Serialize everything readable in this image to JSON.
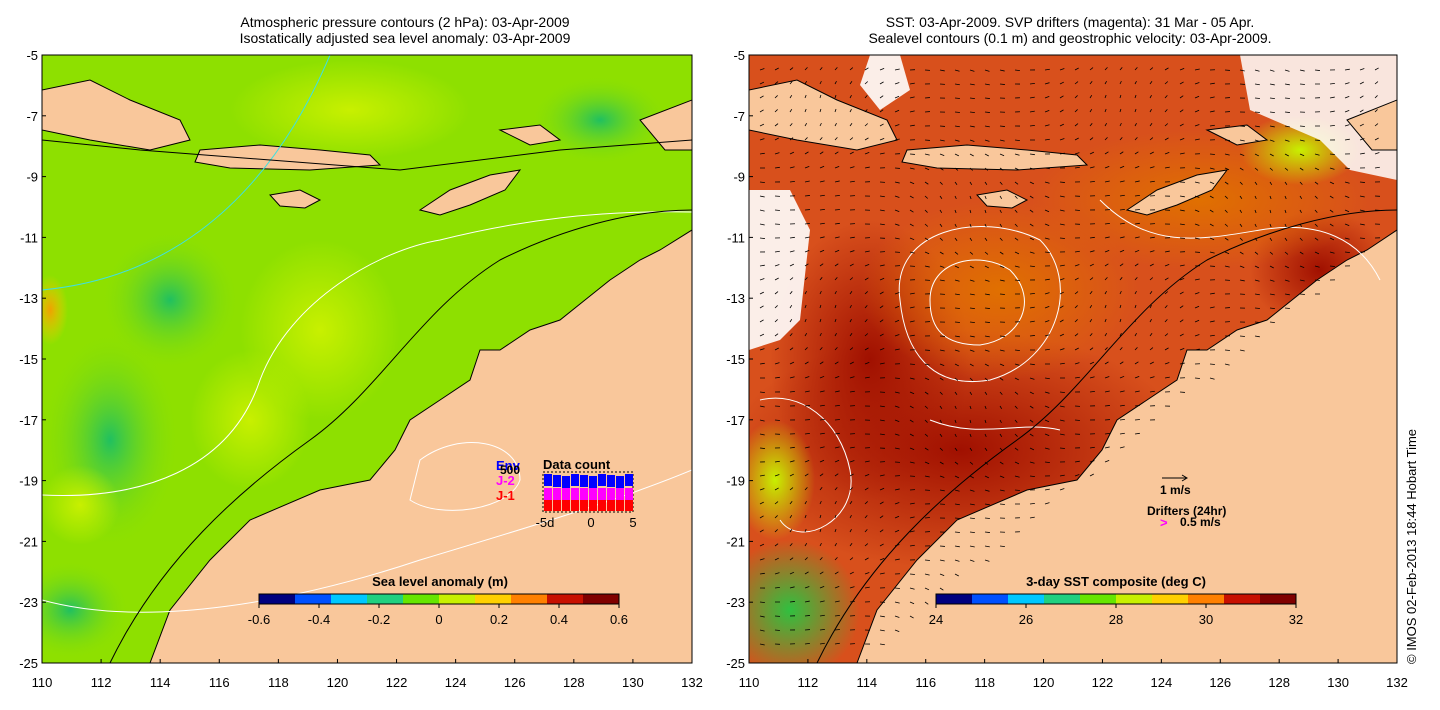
{
  "left_map": {
    "title_line1": "Atmospheric pressure contours (2 hPa): 03-Apr-2009",
    "title_line2": "Isostatically adjusted sea level anomaly: 03-Apr-2009",
    "y_ticks": [
      "-5",
      "-7",
      "-9",
      "-11",
      "-13",
      "-15",
      "-17",
      "-19",
      "-21",
      "-23",
      "-25"
    ],
    "x_ticks": [
      "110",
      "112",
      "114",
      "116",
      "118",
      "120",
      "122",
      "124",
      "126",
      "128",
      "130",
      "132"
    ],
    "colorbar": {
      "title": "Sea level anomaly (m)",
      "ticks": [
        "-0.6",
        "-0.4",
        "-0.2",
        "0",
        "0.2",
        "0.4",
        "0.6"
      ],
      "colors": [
        "#00007f",
        "#0050ff",
        "#00c8ff",
        "#20d080",
        "#66e600",
        "#c8f000",
        "#ffd000",
        "#ff8000",
        "#c81000",
        "#800000"
      ]
    },
    "data_count": {
      "title": "Data count",
      "legend_env": "Env",
      "legend_j2": "J-2",
      "legend_j1": "J-1",
      "legend_max": "500",
      "x_ticks": [
        "-5d",
        "0",
        "5"
      ],
      "bar_colors": {
        "env": "#0000ff",
        "j2": "#ff00ff",
        "j1": "#ff0000"
      }
    }
  },
  "right_map": {
    "title_line1": "SST: 03-Apr-2009. SVP drifters (magenta): 31 Mar - 05 Apr.",
    "title_line2": "Sealevel contours (0.1 m) and geostrophic velocity: 03-Apr-2009.",
    "y_ticks": [
      "-5",
      "-7",
      "-9",
      "-11",
      "-13",
      "-15",
      "-17",
      "-19",
      "-21",
      "-23",
      "-25"
    ],
    "x_ticks": [
      "110",
      "112",
      "114",
      "116",
      "118",
      "120",
      "122",
      "124",
      "126",
      "128",
      "130",
      "132"
    ],
    "colorbar": {
      "title": "3-day SST composite (deg C)",
      "ticks": [
        "24",
        "26",
        "28",
        "30",
        "32"
      ],
      "colors": [
        "#00007f",
        "#0050ff",
        "#00c8ff",
        "#20d080",
        "#66e600",
        "#c8f000",
        "#ffd000",
        "#ff8000",
        "#c81000",
        "#800000"
      ]
    },
    "velocity_label": "1 m/s",
    "drifters_label": "Drifters (24hr)",
    "drifters_speed": "0.5 m/s",
    "drifter_marker": ">"
  },
  "credit": "© IMOS 02-Feb-2013 18:44 Hobart Time",
  "colors": {
    "land": "#f9c79b",
    "sea_left": "#8ee000",
    "sea_right": "#c8401a"
  }
}
